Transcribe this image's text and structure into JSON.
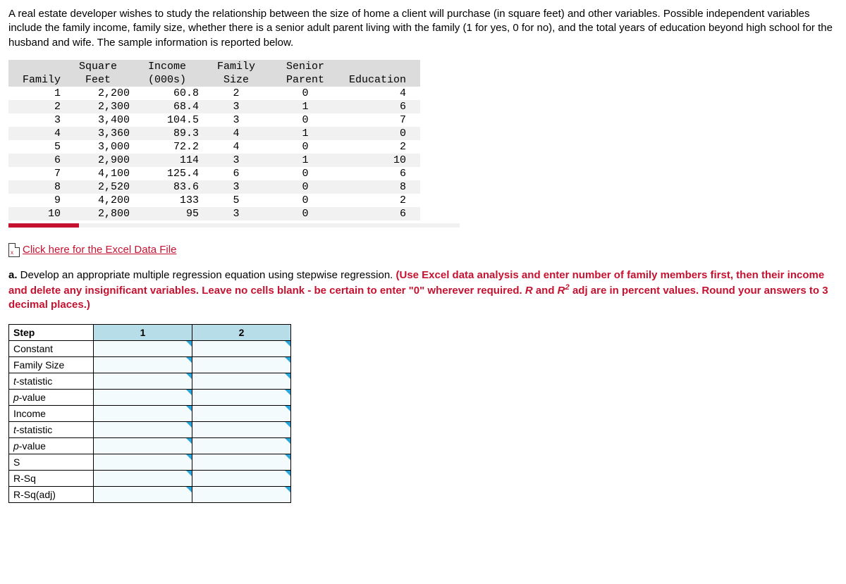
{
  "intro": "A real estate developer wishes to study the relationship between the size of home a client will purchase (in square feet) and other variables. Possible independent variables include the family income, family size, whether there is a senior adult parent living with the family (1 for yes, 0 for no), and the total years of education beyond high school for the husband and wife. The sample information is reported below.",
  "data_table": {
    "headers": {
      "family": "Family",
      "sqft_l1": "Square",
      "sqft_l2": "Feet",
      "inc_l1": "Income",
      "inc_l2": "(000s)",
      "size_l1": "Family",
      "size_l2": "Size",
      "par_l1": "Senior",
      "par_l2": "Parent",
      "edu": "Education"
    },
    "rows": [
      {
        "family": "1",
        "sqft": "2,200",
        "inc": "60.8",
        "size": "2",
        "parent": "0",
        "edu": "4"
      },
      {
        "family": "2",
        "sqft": "2,300",
        "inc": "68.4",
        "size": "3",
        "parent": "1",
        "edu": "6"
      },
      {
        "family": "3",
        "sqft": "3,400",
        "inc": "104.5",
        "size": "3",
        "parent": "0",
        "edu": "7"
      },
      {
        "family": "4",
        "sqft": "3,360",
        "inc": "89.3",
        "size": "4",
        "parent": "1",
        "edu": "0"
      },
      {
        "family": "5",
        "sqft": "3,000",
        "inc": "72.2",
        "size": "4",
        "parent": "0",
        "edu": "2"
      },
      {
        "family": "6",
        "sqft": "2,900",
        "inc": "114",
        "size": "3",
        "parent": "1",
        "edu": "10"
      },
      {
        "family": "7",
        "sqft": "4,100",
        "inc": "125.4",
        "size": "6",
        "parent": "0",
        "edu": "6"
      },
      {
        "family": "8",
        "sqft": "2,520",
        "inc": "83.6",
        "size": "3",
        "parent": "0",
        "edu": "8"
      },
      {
        "family": "9",
        "sqft": "4,200",
        "inc": "133",
        "size": "5",
        "parent": "0",
        "edu": "2"
      },
      {
        "family": "10",
        "sqft": "2,800",
        "inc": "95",
        "size": "3",
        "parent": "0",
        "edu": "6"
      }
    ]
  },
  "excel_link": " Click here for the Excel Data File",
  "question": {
    "prefix": "a.",
    "black": " Develop an appropriate multiple regression equation using stepwise regression. ",
    "red1": "(Use Excel data analysis and enter number of family members first, then their income and delete any insignificant variables. Leave no cells blank - be certain to enter \"0\" wherever required. ",
    "rItal": "R",
    "red2": " and ",
    "r2Ital": "R",
    "sup2": "2",
    "red3": " adj are in percent values. Round your answers to 3 decimal places.)"
  },
  "answer_table": {
    "header": {
      "step": "Step",
      "c1": "1",
      "c2": "2"
    },
    "rows": [
      {
        "label": "Constant",
        "ital": false
      },
      {
        "label": "Family Size",
        "ital": false
      },
      {
        "label": "t-statistic",
        "ital": true,
        "italChar": "t",
        "rest": "-statistic"
      },
      {
        "label": "p-value",
        "ital": true,
        "italChar": "p",
        "rest": "-value"
      },
      {
        "label": "Income",
        "ital": false
      },
      {
        "label": "t-statistic",
        "ital": true,
        "italChar": "t",
        "rest": "-statistic"
      },
      {
        "label": "p-value",
        "ital": true,
        "italChar": "p",
        "rest": "-value"
      },
      {
        "label": "S",
        "ital": false
      },
      {
        "label": "R-Sq",
        "ital": false
      },
      {
        "label": "R-Sq(adj)",
        "ital": false
      }
    ]
  }
}
